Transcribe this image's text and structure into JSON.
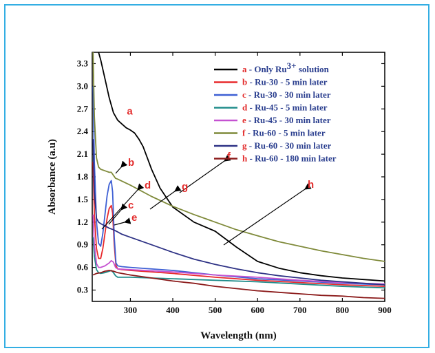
{
  "chart_data": {
    "type": "line",
    "xlabel": "Wavelength (nm)",
    "ylabel": "Absorbance (a.u)",
    "xlim": [
      210,
      900
    ],
    "ylim": [
      0.15,
      3.45
    ],
    "x_ticks": [
      300,
      400,
      500,
      600,
      700,
      800,
      900
    ],
    "y_ticks": [
      0.3,
      0.6,
      0.9,
      1.2,
      1.5,
      1.8,
      2.1,
      2.4,
      2.7,
      3.0,
      3.3
    ],
    "legend_position": "top-right",
    "series": [
      {
        "letter": "a",
        "label": "Only Ru",
        "sup": "3+",
        "suffix": " solution",
        "color": "#000000",
        "x": [
          225,
          230,
          240,
          250,
          260,
          270,
          280,
          290,
          300,
          310,
          320,
          330,
          340,
          350,
          370,
          400,
          450,
          500,
          550,
          600,
          650,
          700,
          750,
          800,
          850,
          900
        ],
        "y": [
          3.45,
          3.35,
          3.1,
          2.85,
          2.65,
          2.55,
          2.5,
          2.45,
          2.42,
          2.38,
          2.3,
          2.2,
          2.05,
          1.9,
          1.65,
          1.4,
          1.2,
          1.08,
          0.87,
          0.68,
          0.59,
          0.53,
          0.49,
          0.46,
          0.44,
          0.42
        ]
      },
      {
        "letter": "b",
        "label": "Ru-30 - 5 min later",
        "color": "#e8292c",
        "x": [
          212,
          215,
          220,
          225,
          230,
          235,
          240,
          245,
          250,
          255,
          258,
          262,
          266,
          270,
          280,
          300,
          400,
          500,
          600,
          700,
          800,
          900
        ],
        "y": [
          2.0,
          1.3,
          0.85,
          0.72,
          0.72,
          0.85,
          1.05,
          1.25,
          1.38,
          1.42,
          1.32,
          0.9,
          0.62,
          0.58,
          0.57,
          0.56,
          0.52,
          0.47,
          0.43,
          0.4,
          0.37,
          0.35
        ]
      },
      {
        "letter": "c",
        "label": "Ru-30 - 30 min later",
        "color": "#3d5fd4",
        "x": [
          212,
          215,
          220,
          225,
          230,
          235,
          240,
          245,
          250,
          255,
          258,
          262,
          266,
          270,
          280,
          300,
          400,
          500,
          600,
          700,
          800,
          900
        ],
        "y": [
          3.0,
          2.0,
          1.2,
          0.92,
          0.88,
          1.05,
          1.3,
          1.55,
          1.7,
          1.75,
          1.6,
          1.0,
          0.66,
          0.62,
          0.61,
          0.6,
          0.56,
          0.5,
          0.45,
          0.42,
          0.39,
          0.37
        ]
      },
      {
        "letter": "d",
        "label": "Ru-45 - 5 min later",
        "color": "#1f8c8a",
        "x": [
          212,
          215,
          220,
          225,
          230,
          240,
          250,
          255,
          260,
          265,
          270,
          300,
          400,
          500,
          600,
          700,
          800,
          900
        ],
        "y": [
          1.0,
          0.75,
          0.57,
          0.53,
          0.52,
          0.53,
          0.55,
          0.56,
          0.53,
          0.49,
          0.47,
          0.47,
          0.45,
          0.43,
          0.41,
          0.38,
          0.35,
          0.33
        ]
      },
      {
        "letter": "e",
        "label": "Ru-45 - 30 min later",
        "color": "#c552d1",
        "x": [
          212,
          215,
          220,
          225,
          230,
          240,
          250,
          255,
          260,
          265,
          270,
          300,
          400,
          500,
          600,
          700,
          800,
          900
        ],
        "y": [
          1.3,
          0.9,
          0.65,
          0.6,
          0.6,
          0.62,
          0.66,
          0.69,
          0.67,
          0.6,
          0.58,
          0.57,
          0.54,
          0.5,
          0.47,
          0.43,
          0.4,
          0.38
        ]
      },
      {
        "letter": "f",
        "label": "Ru-60 - 5 min later",
        "color": "#7f8a3a",
        "x": [
          212,
          215,
          220,
          225,
          230,
          240,
          250,
          255,
          260,
          265,
          270,
          300,
          350,
          400,
          450,
          480,
          500,
          550,
          600,
          650,
          700,
          750,
          800,
          850,
          900
        ],
        "y": [
          3.45,
          2.6,
          2.05,
          1.93,
          1.9,
          1.88,
          1.86,
          1.86,
          1.82,
          1.78,
          1.77,
          1.69,
          1.54,
          1.41,
          1.3,
          1.24,
          1.2,
          1.1,
          1.02,
          0.94,
          0.88,
          0.82,
          0.77,
          0.72,
          0.68
        ]
      },
      {
        "letter": "g",
        "label": "Ru-60 - 30 min later",
        "color": "#2e3285",
        "x": [
          212,
          215,
          220,
          225,
          230,
          240,
          250,
          260,
          270,
          280,
          300,
          350,
          400,
          450,
          500,
          550,
          600,
          650,
          700,
          750,
          800,
          850,
          900
        ],
        "y": [
          2.3,
          1.6,
          1.25,
          1.2,
          1.18,
          1.15,
          1.12,
          1.1,
          1.07,
          1.04,
          1.0,
          0.9,
          0.8,
          0.71,
          0.64,
          0.58,
          0.53,
          0.49,
          0.46,
          0.43,
          0.41,
          0.39,
          0.37
        ]
      },
      {
        "letter": "h",
        "label": "Ru-60 - 180 min later",
        "color": "#8b1a1a",
        "x": [
          212,
          220,
          230,
          240,
          250,
          260,
          270,
          280,
          300,
          350,
          400,
          450,
          500,
          550,
          600,
          650,
          700,
          750,
          800,
          850,
          900
        ],
        "y": [
          0.5,
          0.52,
          0.53,
          0.55,
          0.56,
          0.55,
          0.53,
          0.52,
          0.5,
          0.46,
          0.42,
          0.39,
          0.35,
          0.32,
          0.29,
          0.27,
          0.25,
          0.23,
          0.22,
          0.2,
          0.19
        ]
      }
    ],
    "annotations": [
      {
        "text": "a",
        "target_x": 300,
        "target_y": 2.55
      },
      {
        "text": "b",
        "target_x": 285,
        "target_y": 1.42
      },
      {
        "text": "c",
        "target_x": 290,
        "target_y": 0.82
      },
      {
        "text": "d",
        "target_x": 296,
        "target_y": 1.05
      },
      {
        "text": "e",
        "target_x": 325,
        "target_y": 0.64
      },
      {
        "text": "f",
        "target_x": 535,
        "target_y": 1.6
      },
      {
        "text": "g",
        "target_x": 405,
        "target_y": 1.0
      },
      {
        "text": "h",
        "target_x": 600,
        "target_y": 1.05
      }
    ]
  }
}
